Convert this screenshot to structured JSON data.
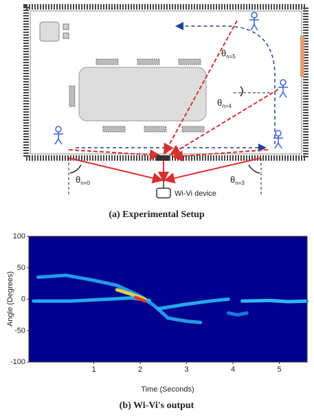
{
  "figure_a": {
    "labels": [
      {
        "symbol": "θ",
        "subscript": "n=5"
      },
      {
        "symbol": "θ",
        "subscript": "n=4"
      },
      {
        "symbol": "θ",
        "subscript": "n=0"
      },
      {
        "symbol": "θ",
        "subscript": "n=3"
      }
    ],
    "device_label": "Wi-Vi device",
    "caption": "(a) Experimental Setup"
  },
  "chart_data": {
    "type": "line",
    "caption": "(b) Wi-Vi's output",
    "x_label": "Time (Seconds)",
    "y_label": "Angle (Degrees)",
    "xlim": [
      -0.4,
      5.6
    ],
    "ylim": [
      -100,
      100
    ],
    "xticks": [
      1,
      2,
      3,
      4,
      5
    ],
    "yticks": [
      -100,
      -50,
      0,
      50,
      100
    ],
    "background": "#00008f",
    "series": [
      {
        "color": "#2aa8f0",
        "x": [
          -0.2,
          0.4,
          1.0,
          1.5,
          2.0,
          2.3,
          2.6,
          3.0,
          3.3
        ],
        "values": [
          35,
          38,
          30,
          22,
          5,
          -10,
          -30,
          -35,
          -37
        ]
      },
      {
        "color": "#2ab8f6",
        "x": [
          -0.3,
          0.5,
          1.3,
          1.8,
          2.2
        ],
        "values": [
          -3,
          -3,
          0,
          2,
          -2
        ]
      },
      {
        "color": "#2ab8f6",
        "x": [
          2.4,
          3.0,
          3.5,
          3.9
        ],
        "values": [
          -15,
          -8,
          -3,
          0
        ]
      },
      {
        "color": "#1f7fe0",
        "x": [
          3.9,
          4.1,
          4.3
        ],
        "values": [
          -22,
          -25,
          -22
        ]
      },
      {
        "color": "#36c8f8",
        "x": [
          4.2,
          4.8,
          5.2,
          5.6
        ],
        "values": [
          -3,
          -2,
          -4,
          -3
        ]
      },
      {
        "color": "#f2e83a",
        "x": [
          1.5,
          1.8,
          2.1
        ],
        "values": [
          15,
          8,
          0
        ]
      },
      {
        "color": "#e03020",
        "x": [
          1.9,
          2.1
        ],
        "values": [
          3,
          -3
        ]
      }
    ]
  }
}
